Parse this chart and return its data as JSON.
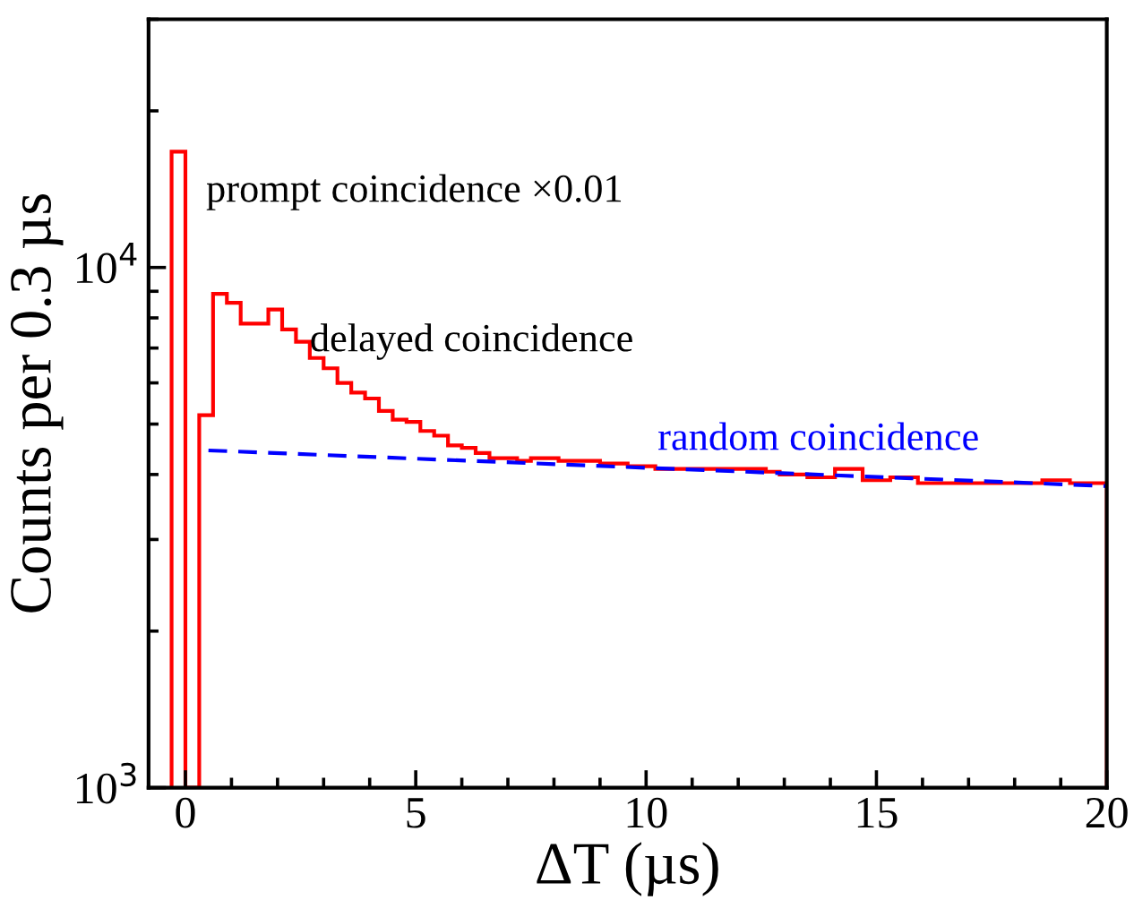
{
  "chart_data": {
    "type": "histogram",
    "xlabel": "ΔT (µs)",
    "ylabel": "Counts per 0.3 µs",
    "color": "#ff0000",
    "bins": [
      -0.3,
      0,
      0.3,
      0.6,
      0.9,
      1.2,
      1.5,
      1.8,
      2.1,
      2.4,
      2.7,
      3.0,
      3.3,
      3.6,
      3.9,
      4.2,
      4.5,
      4.8,
      5.1,
      5.4,
      5.7,
      6.0,
      6.3,
      6.6,
      6.9,
      7.2,
      7.5,
      7.8,
      8.1,
      8.4,
      8.7,
      9.0,
      9.3,
      9.6,
      9.9,
      10.2,
      10.5,
      10.8,
      11.1,
      11.4,
      11.7,
      12.0,
      12.3,
      12.6,
      12.9,
      13.2,
      13.5,
      13.8,
      14.1,
      14.4,
      14.7,
      15.0,
      15.3,
      15.6,
      15.9,
      16.2,
      16.5,
      16.8,
      17.1,
      17.4,
      17.7,
      18.0,
      18.3,
      18.6,
      18.9,
      19.2,
      19.5,
      19.8,
      20.0
    ],
    "values": [
      16700,
      1000,
      5200,
      8900,
      8550,
      7800,
      7800,
      8300,
      7600,
      7200,
      6700,
      6400,
      6000,
      5750,
      5600,
      5300,
      5100,
      5050,
      4850,
      4750,
      4550,
      4500,
      4400,
      4300,
      4300,
      4250,
      4300,
      4300,
      4250,
      4250,
      4250,
      4200,
      4200,
      4150,
      4150,
      4100,
      4100,
      4100,
      4100,
      4100,
      4100,
      4100,
      4100,
      4050,
      4000,
      4000,
      3950,
      3950,
      4100,
      4100,
      3900,
      3900,
      3950,
      3950,
      3850,
      3850,
      3850,
      3850,
      3850,
      3850,
      3850,
      3850,
      3850,
      3900,
      3900,
      3850,
      3850,
      3850
    ],
    "series": [
      {
        "type": "line",
        "name": "random coincidence",
        "x": [
          0.5,
          20
        ],
        "values": [
          4450,
          3800
        ],
        "color": "#0000ff",
        "line_style": "dashed"
      }
    ],
    "annotations": [
      "prompt coincidence ×0.01",
      {
        "text": "delayed coincidence",
        "x": 2.7,
        "y": 7200
      }
    ],
    "log": "y",
    "xlim": [
      -0.8,
      20
    ],
    "xticks": [
      0,
      5,
      10,
      15,
      20
    ],
    "ylim": [
      1000,
      30000
    ],
    "yticks": [
      {
        "value": 1000,
        "label": "10$^{3}$"
      },
      {
        "value": 10000,
        "label": "10$^{4}$"
      }
    ],
    "grid": false,
    "legend": false
  }
}
